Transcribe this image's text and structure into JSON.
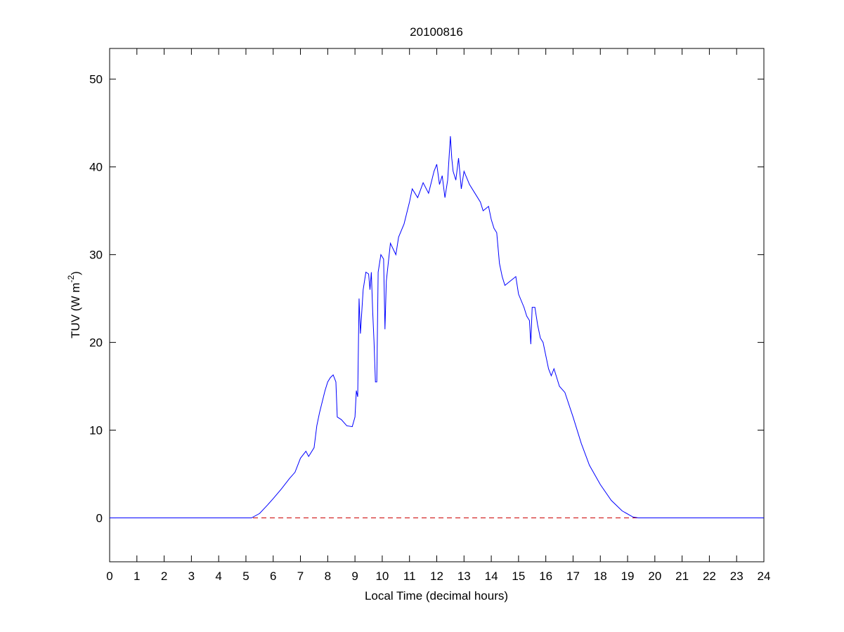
{
  "chart_data": {
    "type": "line",
    "title": "20100816",
    "xlabel": "Local Time (decimal hours)",
    "ylabel": [
      "TUV (W m",
      "-2",
      ")"
    ],
    "x": [
      0,
      5,
      5.2,
      5.5,
      5.8,
      6,
      6.3,
      6.6,
      6.8,
      7.0,
      7.2,
      7.3,
      7.5,
      7.6,
      7.7,
      7.9,
      8.0,
      8.1,
      8.2,
      8.3,
      8.35,
      8.5,
      8.7,
      8.9,
      9.0,
      9.05,
      9.1,
      9.15,
      9.2,
      9.3,
      9.4,
      9.5,
      9.55,
      9.6,
      9.65,
      9.7,
      9.75,
      9.8,
      9.85,
      9.95,
      10.05,
      10.1,
      10.15,
      10.3,
      10.5,
      10.6,
      10.8,
      11.0,
      11.1,
      11.3,
      11.5,
      11.7,
      11.9,
      12.0,
      12.1,
      12.2,
      12.3,
      12.4,
      12.5,
      12.55,
      12.6,
      12.7,
      12.8,
      12.9,
      13.0,
      13.2,
      13.4,
      13.6,
      13.7,
      13.9,
      14.0,
      14.1,
      14.2,
      14.3,
      14.4,
      14.5,
      14.7,
      14.9,
      15.0,
      15.2,
      15.3,
      15.4,
      15.45,
      15.5,
      15.6,
      15.7,
      15.8,
      15.9,
      16.0,
      16.1,
      16.2,
      16.3,
      16.5,
      16.7,
      17.0,
      17.3,
      17.6,
      18.0,
      18.4,
      18.8,
      19.2,
      19.4,
      24
    ],
    "series": [
      {
        "color": "#0000ff",
        "values": [
          0,
          0,
          0,
          0.5,
          1.5,
          2.2,
          3.3,
          4.5,
          5.2,
          6.8,
          7.6,
          7.0,
          8.0,
          10.5,
          12,
          14.5,
          15.5,
          16.0,
          16.3,
          15.5,
          11.5,
          11.2,
          10.5,
          10.4,
          11.5,
          14.5,
          13.8,
          25,
          21,
          26,
          28,
          27.8,
          26,
          28,
          23.5,
          20,
          15.5,
          15.5,
          28,
          30,
          29.5,
          21.5,
          27,
          31.3,
          30,
          32,
          33.5,
          36,
          37.5,
          36.5,
          38.2,
          37,
          39.5,
          40.3,
          38,
          39,
          36.5,
          38.5,
          43.5,
          41,
          39.5,
          38.5,
          41,
          37.5,
          39.5,
          38,
          37,
          36,
          35,
          35.5,
          34,
          33,
          32.5,
          29,
          27.5,
          26.5,
          27,
          27.5,
          25.5,
          24,
          23,
          22.5,
          19.8,
          24,
          24,
          22,
          20.5,
          20,
          18.5,
          17,
          16.2,
          17,
          15,
          14.3,
          11.5,
          8.5,
          6,
          3.8,
          2,
          0.8,
          0.1,
          0,
          0
        ]
      }
    ],
    "reference_line": {
      "value": 0,
      "color": "#cc0000",
      "style": "dashed"
    },
    "xlim": [
      0,
      24
    ],
    "ylim": [
      -5,
      53.5
    ],
    "xticks": [
      0,
      1,
      2,
      3,
      4,
      5,
      6,
      7,
      8,
      9,
      10,
      11,
      12,
      13,
      14,
      15,
      16,
      17,
      18,
      19,
      20,
      21,
      22,
      23,
      24
    ],
    "yticks": [
      0,
      10,
      20,
      30,
      40,
      50
    ],
    "grid": false
  }
}
